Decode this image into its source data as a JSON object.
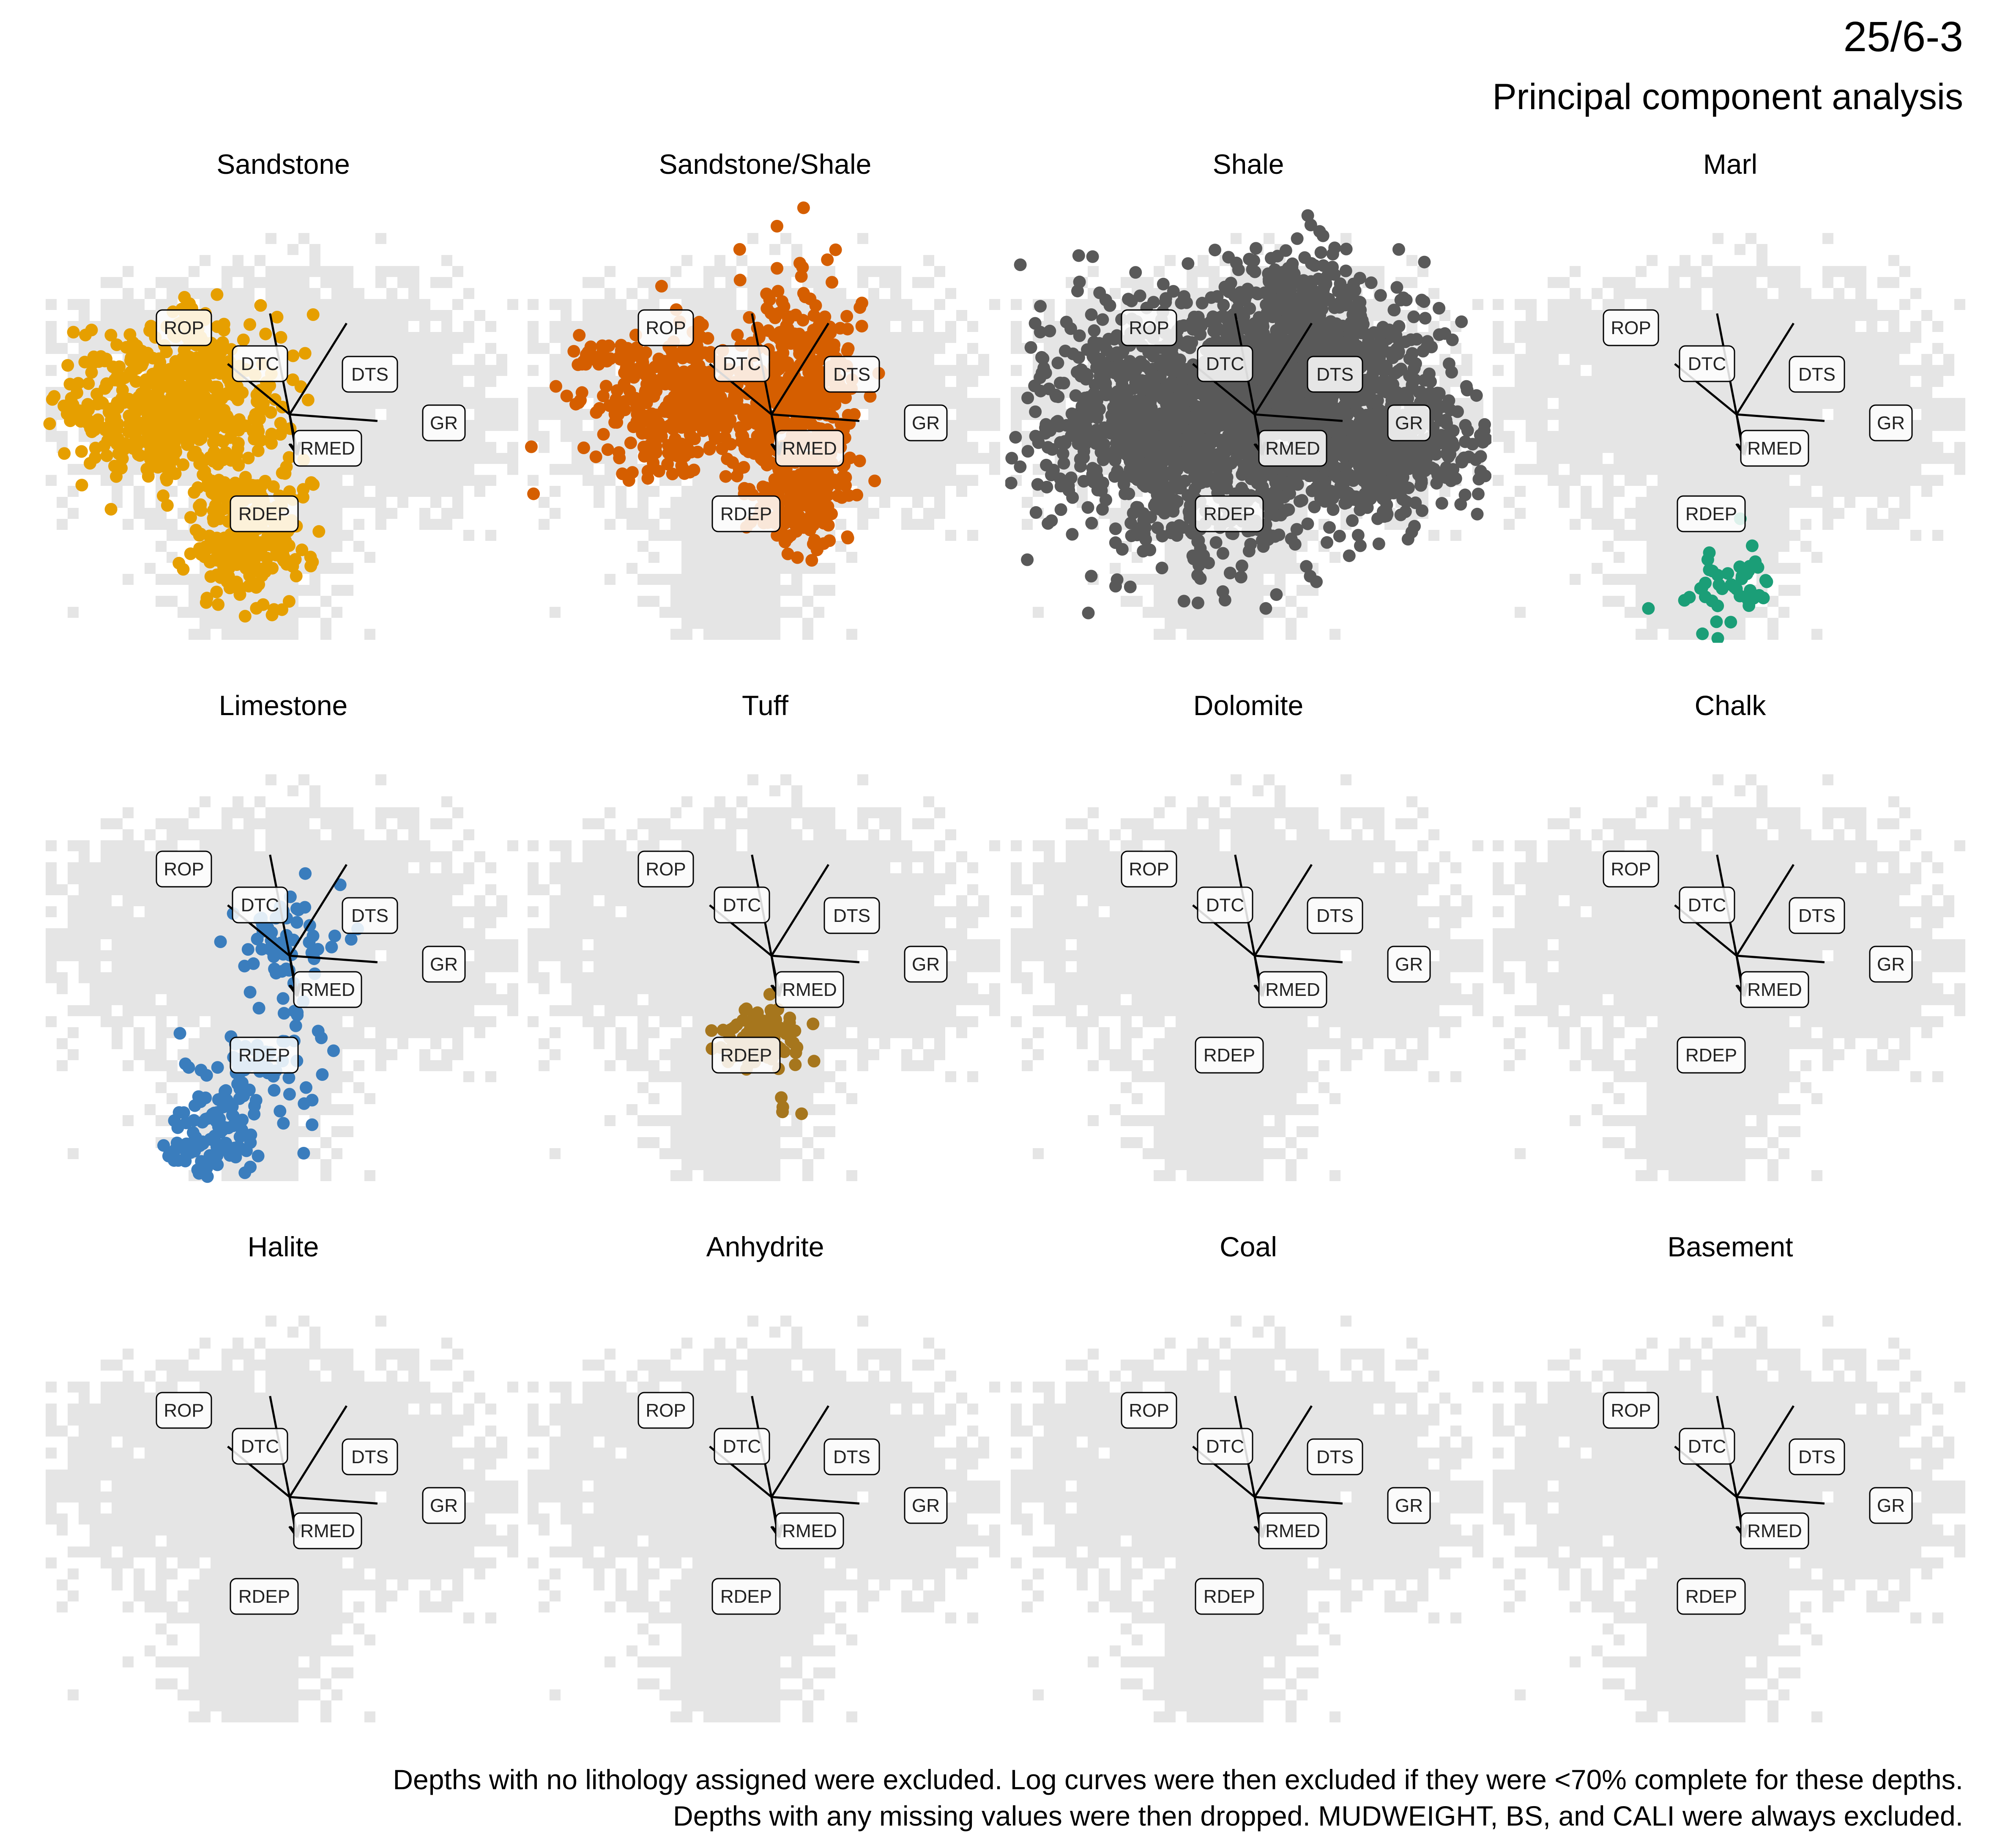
{
  "header": {
    "title": "25/6-3",
    "subtitle": "Principal component analysis"
  },
  "caption": {
    "line1": "Depths with no lithology assigned were excluded. Log curves were then excluded if they were <70% complete for these depths.",
    "line2": "Depths with any missing values were then dropped. MUDWEIGHT, BS, and CALI were always excluded."
  },
  "colors": {
    "background_points": "#e5e5e5",
    "loading_lines": "#000000",
    "label_border": "#000000",
    "label_fill": "#ffffff"
  },
  "chart_data": {
    "type": "scatter",
    "subtype": "pca-biplot-facets",
    "grid": false,
    "axes_visible": false,
    "loadings": [
      {
        "name": "DTC",
        "x": -0.12,
        "y": 0.62
      },
      {
        "name": "DTS",
        "x": 0.35,
        "y": 0.56
      },
      {
        "name": "ROP",
        "x": -0.38,
        "y": 0.31
      },
      {
        "name": "GR",
        "x": 0.54,
        "y": -0.04
      },
      {
        "name": "RMED",
        "x": 0.05,
        "y": -0.24
      },
      {
        "name": "RDEP",
        "x": 0.04,
        "y": -0.24
      }
    ],
    "facets": [
      {
        "name": "Sandstone",
        "color": "#E69F00",
        "points": [
          {
            "cx": -0.72,
            "cy": 0.08,
            "sx": 0.32,
            "sy": 0.22,
            "n": 520
          },
          {
            "cx": -0.28,
            "cy": -0.72,
            "sx": 0.17,
            "sy": 0.22,
            "n": 280
          },
          {
            "cx": -0.6,
            "cy": 0.5,
            "sx": 0.08,
            "sy": 0.12,
            "n": 30
          }
        ]
      },
      {
        "name": "Sandstone/Shale",
        "color": "#D55E00",
        "points": [
          {
            "cx": -0.55,
            "cy": 0.05,
            "sx": 0.28,
            "sy": 0.2,
            "n": 380
          },
          {
            "cx": 0.18,
            "cy": 0.22,
            "sx": 0.18,
            "sy": 0.3,
            "n": 300
          },
          {
            "cx": 0.18,
            "cy": -0.42,
            "sx": 0.16,
            "sy": 0.24,
            "n": 240
          },
          {
            "cx": -1.0,
            "cy": 0.38,
            "sx": 0.12,
            "sy": 0.05,
            "n": 25
          }
        ]
      },
      {
        "name": "Shale",
        "color": "#595959",
        "points": [
          {
            "cx": -0.15,
            "cy": 0.0,
            "sx": 0.58,
            "sy": 0.35,
            "n": 1700
          },
          {
            "cx": 0.35,
            "cy": 0.35,
            "sx": 0.28,
            "sy": 0.3,
            "n": 600
          },
          {
            "cx": 0.8,
            "cy": -0.2,
            "sx": 0.3,
            "sy": 0.18,
            "n": 350
          },
          {
            "cx": -0.15,
            "cy": -0.8,
            "sx": 0.22,
            "sy": 0.2,
            "n": 40
          }
        ]
      },
      {
        "name": "Marl",
        "color": "#1B9E77",
        "points": [
          {
            "cx": -0.05,
            "cy": -1.05,
            "sx": 0.18,
            "sy": 0.14,
            "n": 45
          }
        ]
      },
      {
        "name": "Limestone",
        "color": "#3A7DBD",
        "points": [
          {
            "cx": -0.05,
            "cy": 0.05,
            "sx": 0.17,
            "sy": 0.18,
            "n": 60
          },
          {
            "cx": -0.2,
            "cy": -0.72,
            "sx": 0.2,
            "sy": 0.2,
            "n": 70
          },
          {
            "cx": -0.5,
            "cy": -1.15,
            "sx": 0.15,
            "sy": 0.12,
            "n": 80
          }
        ]
      },
      {
        "name": "Tuff",
        "color": "#A6761D",
        "points": [
          {
            "cx": -0.05,
            "cy": -0.5,
            "sx": 0.14,
            "sy": 0.09,
            "n": 110
          },
          {
            "cx": 0.1,
            "cy": -0.95,
            "sx": 0.05,
            "sy": 0.07,
            "n": 4
          }
        ]
      },
      {
        "name": "Dolomite",
        "color": "#666666",
        "points": []
      },
      {
        "name": "Chalk",
        "color": "#666666",
        "points": []
      },
      {
        "name": "Halite",
        "color": "#666666",
        "points": []
      },
      {
        "name": "Anhydrite",
        "color": "#666666",
        "points": []
      },
      {
        "name": "Coal",
        "color": "#666666",
        "points": []
      },
      {
        "name": "Basement",
        "color": "#666666",
        "points": []
      }
    ]
  }
}
